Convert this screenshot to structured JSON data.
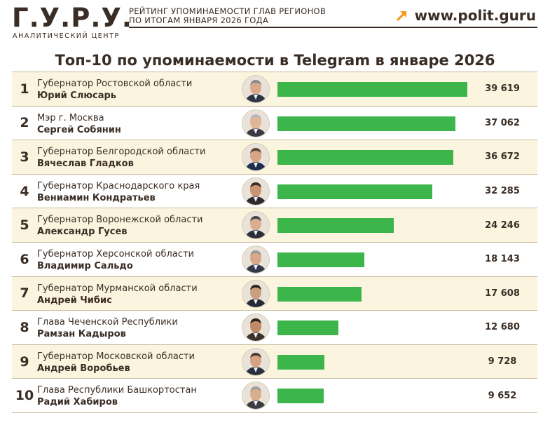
{
  "header": {
    "logo": "Г.У.Р.У.",
    "logo_subtitle": "АНАЛИТИЧЕСКИЙ ЦЕНТР",
    "title_line1": "РЕЙТИНГ УПОМИНАЕМОСТИ ГЛАВ РЕГИОНОВ",
    "title_line2": "ПО ИТОГАМ ЯНВАРЯ 2026 ГОДА",
    "site": "www.polit.guru",
    "arrow_icon": "arrow-up-right-icon",
    "accent_color": "#f39a1e"
  },
  "chart_data": {
    "type": "bar",
    "orientation": "horizontal",
    "title": "Топ-10 по упоминаемости в Telegram в январе 2026",
    "bar_color": "#3cb54a",
    "max_value": 39619,
    "rows": [
      {
        "rank": "1",
        "post": "Губернатор Ростовской области",
        "name": "Юрий Слюсарь",
        "value": 39619,
        "value_label": "39 619"
      },
      {
        "rank": "2",
        "post": "Мэр г. Москва",
        "name": "Сергей Собянин",
        "value": 37062,
        "value_label": "37 062"
      },
      {
        "rank": "3",
        "post": "Губернатор Белгородской области",
        "name": "Вячеслав Гладков",
        "value": 36672,
        "value_label": "36 672"
      },
      {
        "rank": "4",
        "post": "Губернатор Краснодарского края",
        "name": "Вениамин Кондратьев",
        "value": 32285,
        "value_label": "32 285"
      },
      {
        "rank": "5",
        "post": "Губернатор Воронежской области",
        "name": "Александр Гусев",
        "value": 24246,
        "value_label": "24 246"
      },
      {
        "rank": "6",
        "post": "Губернатор Херсонской области",
        "name": "Владимир Сальдо",
        "value": 18143,
        "value_label": "18 143"
      },
      {
        "rank": "7",
        "post": "Губернатор Мурманской области",
        "name": "Андрей Чибис",
        "value": 17608,
        "value_label": "17 608"
      },
      {
        "rank": "8",
        "post": "Глава Чеченской Республики",
        "name": "Рамзан Кадыров",
        "value": 12680,
        "value_label": "12 680"
      },
      {
        "rank": "9",
        "post": "Губернатор Московской области",
        "name": "Андрей Воробьев",
        "value": 9728,
        "value_label": "9 728"
      },
      {
        "rank": "10",
        "post": "Глава Республики Башкортостан",
        "name": "Радий Хабиров",
        "value": 9652,
        "value_label": "9 652"
      }
    ]
  }
}
